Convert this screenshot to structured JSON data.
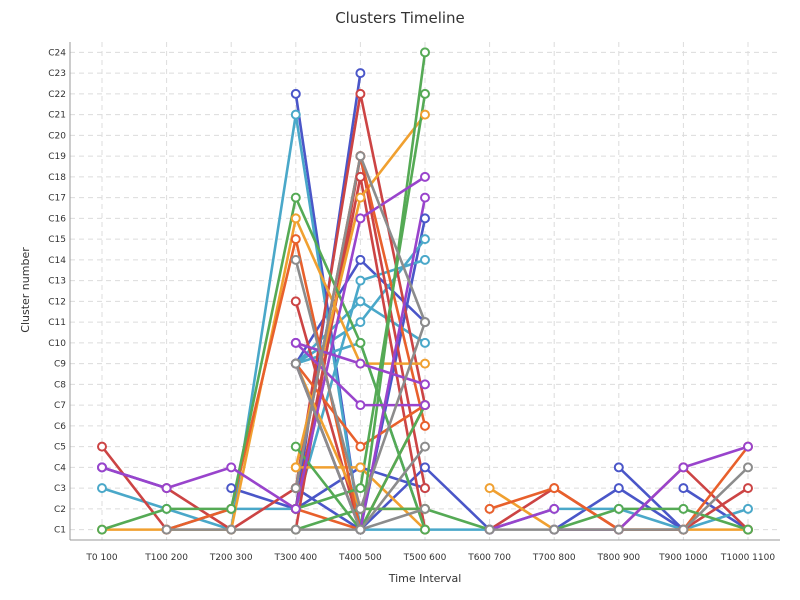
{
  "chart_data": {
    "type": "line",
    "title": "Clusters Timeline",
    "xlabel": "Time Interval",
    "ylabel": "Cluster number",
    "categories": [
      "T0 100",
      "T100 200",
      "T200 300",
      "T300 400",
      "T400 500",
      "T500 600",
      "T600 700",
      "T700 800",
      "T800 900",
      "T900 1000",
      "T1000 1100"
    ],
    "y_ticks": [
      "C1",
      "C2",
      "C3",
      "C4",
      "C5",
      "C6",
      "C7",
      "C8",
      "C9",
      "C10",
      "C11",
      "C12",
      "C13",
      "C14",
      "C15",
      "C16",
      "C17",
      "C18",
      "C19",
      "C20",
      "C21",
      "C22",
      "C23",
      "C24"
    ],
    "ylim": [
      0.5,
      24.5
    ],
    "grid": true,
    "legend": "none",
    "series": [
      {
        "color": "#4a56c8",
        "values": [
          4,
          3,
          null,
          22,
          1,
          null,
          null,
          null,
          null,
          null,
          null
        ]
      },
      {
        "color": "#4a56c8",
        "values": [
          null,
          null,
          3,
          2,
          23,
          null,
          null,
          null,
          null,
          null,
          null
        ]
      },
      {
        "color": "#4a56c8",
        "values": [
          null,
          null,
          null,
          3,
          1,
          16,
          null,
          null,
          null,
          null,
          null
        ]
      },
      {
        "color": "#4a56c8",
        "values": [
          null,
          null,
          null,
          9,
          14,
          11,
          null,
          null,
          null,
          null,
          null
        ]
      },
      {
        "color": "#4a56c8",
        "values": [
          null,
          null,
          null,
          2,
          4,
          3,
          null,
          null,
          null,
          null,
          null
        ]
      },
      {
        "color": "#4a56c8",
        "values": [
          null,
          null,
          null,
          null,
          1,
          4,
          1,
          null,
          4,
          1,
          null
        ]
      },
      {
        "color": "#4a56c8",
        "values": [
          null,
          null,
          null,
          null,
          null,
          null,
          null,
          1,
          3,
          1,
          null
        ]
      },
      {
        "color": "#4a56c8",
        "values": [
          null,
          null,
          null,
          null,
          null,
          null,
          null,
          null,
          null,
          3,
          1
        ]
      },
      {
        "color": "#4aa8c9",
        "values": [
          3,
          2,
          1,
          21,
          1,
          null,
          null,
          null,
          null,
          null,
          null
        ]
      },
      {
        "color": "#4aa8c9",
        "values": [
          null,
          1,
          2,
          2,
          13,
          14,
          null,
          null,
          null,
          null,
          null
        ]
      },
      {
        "color": "#4aa8c9",
        "values": [
          null,
          null,
          null,
          9,
          11,
          15,
          null,
          null,
          null,
          null,
          null
        ]
      },
      {
        "color": "#4aa8c9",
        "values": [
          null,
          null,
          null,
          9,
          12,
          10,
          null,
          null,
          null,
          null,
          null
        ]
      },
      {
        "color": "#4aa8c9",
        "values": [
          null,
          null,
          null,
          9,
          10,
          1,
          null,
          null,
          null,
          null,
          null
        ]
      },
      {
        "color": "#4aa8c9",
        "values": [
          null,
          null,
          null,
          null,
          1,
          1,
          1,
          2,
          2,
          1,
          2
        ]
      },
      {
        "color": "#cc4444",
        "values": [
          5,
          1,
          null,
          12,
          1,
          null,
          null,
          null,
          null,
          null,
          null
        ]
      },
      {
        "color": "#cc4444",
        "values": [
          null,
          3,
          1,
          3,
          22,
          7,
          null,
          null,
          null,
          null,
          null
        ]
      },
      {
        "color": "#cc4444",
        "values": [
          null,
          null,
          null,
          1,
          19,
          3,
          null,
          null,
          null,
          null,
          null
        ]
      },
      {
        "color": "#cc4444",
        "values": [
          null,
          null,
          null,
          2,
          18,
          1,
          null,
          null,
          null,
          null,
          null
        ]
      },
      {
        "color": "#cc4444",
        "values": [
          null,
          null,
          null,
          null,
          null,
          null,
          1,
          3,
          1,
          4,
          1
        ]
      },
      {
        "color": "#cc4444",
        "values": [
          null,
          null,
          null,
          null,
          null,
          null,
          null,
          null,
          null,
          1,
          3
        ]
      },
      {
        "color": "#f0a030",
        "values": [
          1,
          1,
          1,
          16,
          9,
          9,
          null,
          null,
          null,
          null,
          null
        ]
      },
      {
        "color": "#f0a030",
        "values": [
          null,
          null,
          null,
          4,
          17,
          21,
          null,
          null,
          null,
          null,
          null
        ]
      },
      {
        "color": "#f0a030",
        "values": [
          null,
          null,
          null,
          4,
          4,
          1,
          null,
          null,
          null,
          null,
          null
        ]
      },
      {
        "color": "#f0a030",
        "values": [
          null,
          null,
          null,
          9,
          2,
          2,
          null,
          null,
          null,
          null,
          null
        ]
      },
      {
        "color": "#f0a030",
        "values": [
          null,
          null,
          null,
          null,
          null,
          null,
          3,
          1,
          1,
          1,
          1
        ]
      },
      {
        "color": "#e8602c",
        "values": [
          null,
          1,
          2,
          15,
          1,
          null,
          null,
          null,
          null,
          null,
          null
        ]
      },
      {
        "color": "#e8602c",
        "values": [
          null,
          null,
          null,
          3,
          19,
          6,
          null,
          null,
          null,
          null,
          null
        ]
      },
      {
        "color": "#e8602c",
        "values": [
          null,
          null,
          null,
          9,
          5,
          7,
          null,
          null,
          null,
          null,
          null
        ]
      },
      {
        "color": "#e8602c",
        "values": [
          null,
          null,
          null,
          2,
          1,
          7,
          null,
          null,
          null,
          null,
          null
        ]
      },
      {
        "color": "#e8602c",
        "values": [
          null,
          null,
          null,
          null,
          null,
          null,
          2,
          3,
          1,
          1,
          5
        ]
      },
      {
        "color": "#55aa55",
        "values": [
          1,
          2,
          2,
          17,
          10,
          1,
          null,
          null,
          null,
          null,
          null
        ]
      },
      {
        "color": "#55aa55",
        "values": [
          null,
          null,
          null,
          5,
          1,
          24,
          null,
          null,
          null,
          null,
          null
        ]
      },
      {
        "color": "#55aa55",
        "values": [
          null,
          null,
          null,
          2,
          3,
          22,
          null,
          null,
          null,
          null,
          null
        ]
      },
      {
        "color": "#55aa55",
        "values": [
          null,
          null,
          null,
          1,
          2,
          2,
          1,
          null,
          null,
          null,
          null
        ]
      },
      {
        "color": "#55aa55",
        "values": [
          null,
          null,
          null,
          9,
          1,
          7,
          null,
          null,
          null,
          null,
          null
        ]
      },
      {
        "color": "#55aa55",
        "values": [
          null,
          null,
          null,
          null,
          null,
          null,
          null,
          1,
          2,
          2,
          1
        ]
      },
      {
        "color": "#9944cc",
        "values": [
          4,
          3,
          4,
          2,
          16,
          18,
          null,
          null,
          null,
          null,
          null
        ]
      },
      {
        "color": "#9944cc",
        "values": [
          null,
          null,
          null,
          10,
          7,
          7,
          null,
          null,
          null,
          null,
          null
        ]
      },
      {
        "color": "#9944cc",
        "values": [
          null,
          null,
          null,
          9,
          1,
          17,
          null,
          null,
          null,
          null,
          null
        ]
      },
      {
        "color": "#9944cc",
        "values": [
          null,
          null,
          null,
          10,
          9,
          8,
          null,
          null,
          null,
          null,
          null
        ]
      },
      {
        "color": "#9944cc",
        "values": [
          null,
          null,
          null,
          null,
          null,
          null,
          null,
          1,
          1,
          4,
          5
        ]
      },
      {
        "color": "#9944cc",
        "values": [
          null,
          null,
          null,
          null,
          null,
          null,
          1,
          2,
          null,
          null,
          null
        ]
      },
      {
        "color": "#8c8c8c",
        "values": [
          null,
          1,
          1,
          1,
          1,
          5,
          null,
          null,
          null,
          null,
          null
        ]
      },
      {
        "color": "#8c8c8c",
        "values": [
          null,
          null,
          null,
          14,
          2,
          11,
          null,
          null,
          null,
          null,
          null
        ]
      },
      {
        "color": "#8c8c8c",
        "values": [
          null,
          null,
          null,
          3,
          19,
          11,
          null,
          null,
          null,
          null,
          null
        ]
      },
      {
        "color": "#8c8c8c",
        "values": [
          null,
          null,
          null,
          9,
          1,
          2,
          null,
          null,
          null,
          null,
          null
        ]
      },
      {
        "color": "#8c8c8c",
        "values": [
          null,
          null,
          null,
          null,
          null,
          null,
          1,
          1,
          1,
          1,
          4
        ]
      }
    ]
  }
}
